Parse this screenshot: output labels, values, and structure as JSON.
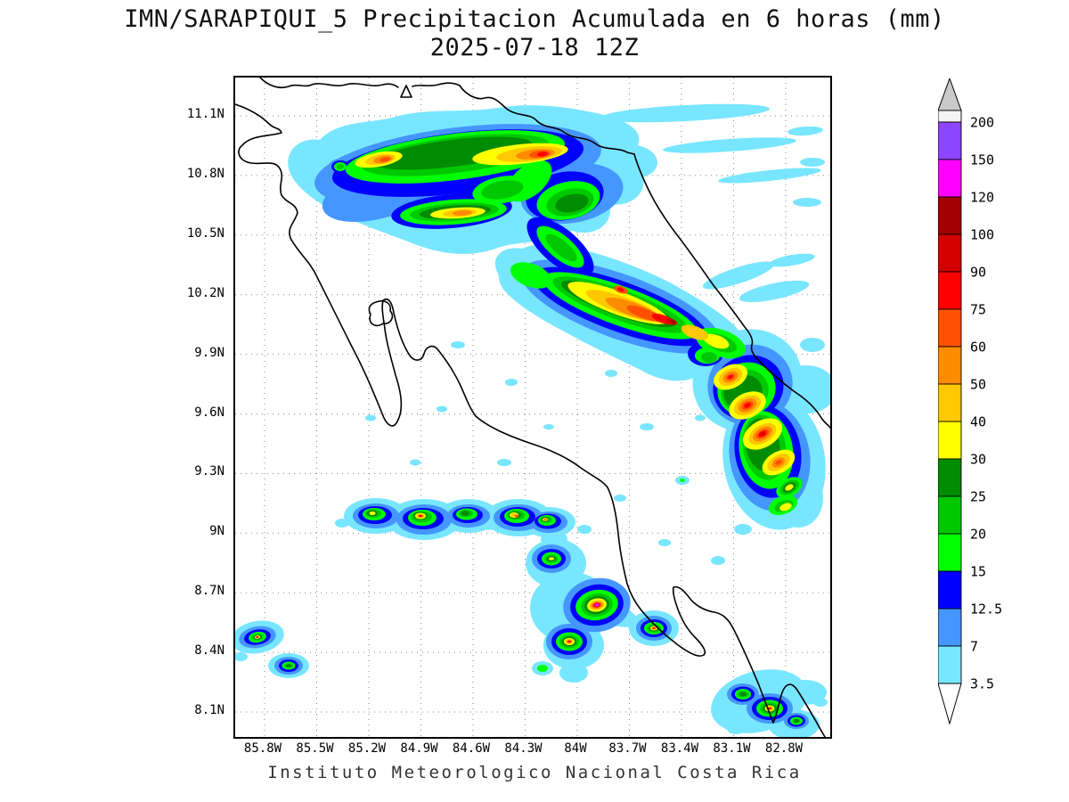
{
  "title": {
    "line1": "IMN/SARAPIQUI_5 Precipitacion Acumulada en 6 horas (mm)",
    "line2": "2025-07-18 12Z"
  },
  "footer": {
    "text": "Instituto Meteorologico Nacional Costa Rica"
  },
  "axes": {
    "lat_ticks": [
      "11.1N",
      "10.8N",
      "10.5N",
      "10.2N",
      "9.9N",
      "9.6N",
      "9.3N",
      "9N",
      "8.7N",
      "8.4N",
      "8.1N"
    ],
    "lon_ticks": [
      "85.8W",
      "85.5W",
      "85.2W",
      "84.9W",
      "84.6W",
      "84.3W",
      "84W",
      "83.7W",
      "83.4W",
      "83.1W",
      "82.8W"
    ]
  },
  "legend": {
    "boundaries_top_to_bottom": [
      "200",
      "150",
      "120",
      "100",
      "90",
      "75",
      "60",
      "50",
      "40",
      "30",
      "25",
      "20",
      "15",
      "12.5",
      "7",
      "3.5"
    ],
    "segment_colors_top_to_bottom": [
      "#f4f4f4",
      "#8c46ff",
      "#ff00ff",
      "#a00000",
      "#d20000",
      "#ff0000",
      "#ff5000",
      "#ff8c00",
      "#ffc800",
      "#ffff00",
      "#008c00",
      "#00c800",
      "#00ff00",
      "#0000ff",
      "#4696ff",
      "#78e6ff"
    ],
    "top_arrow_color": "#c9c9c9",
    "bottom_arrow_color": "#ffffff"
  }
}
